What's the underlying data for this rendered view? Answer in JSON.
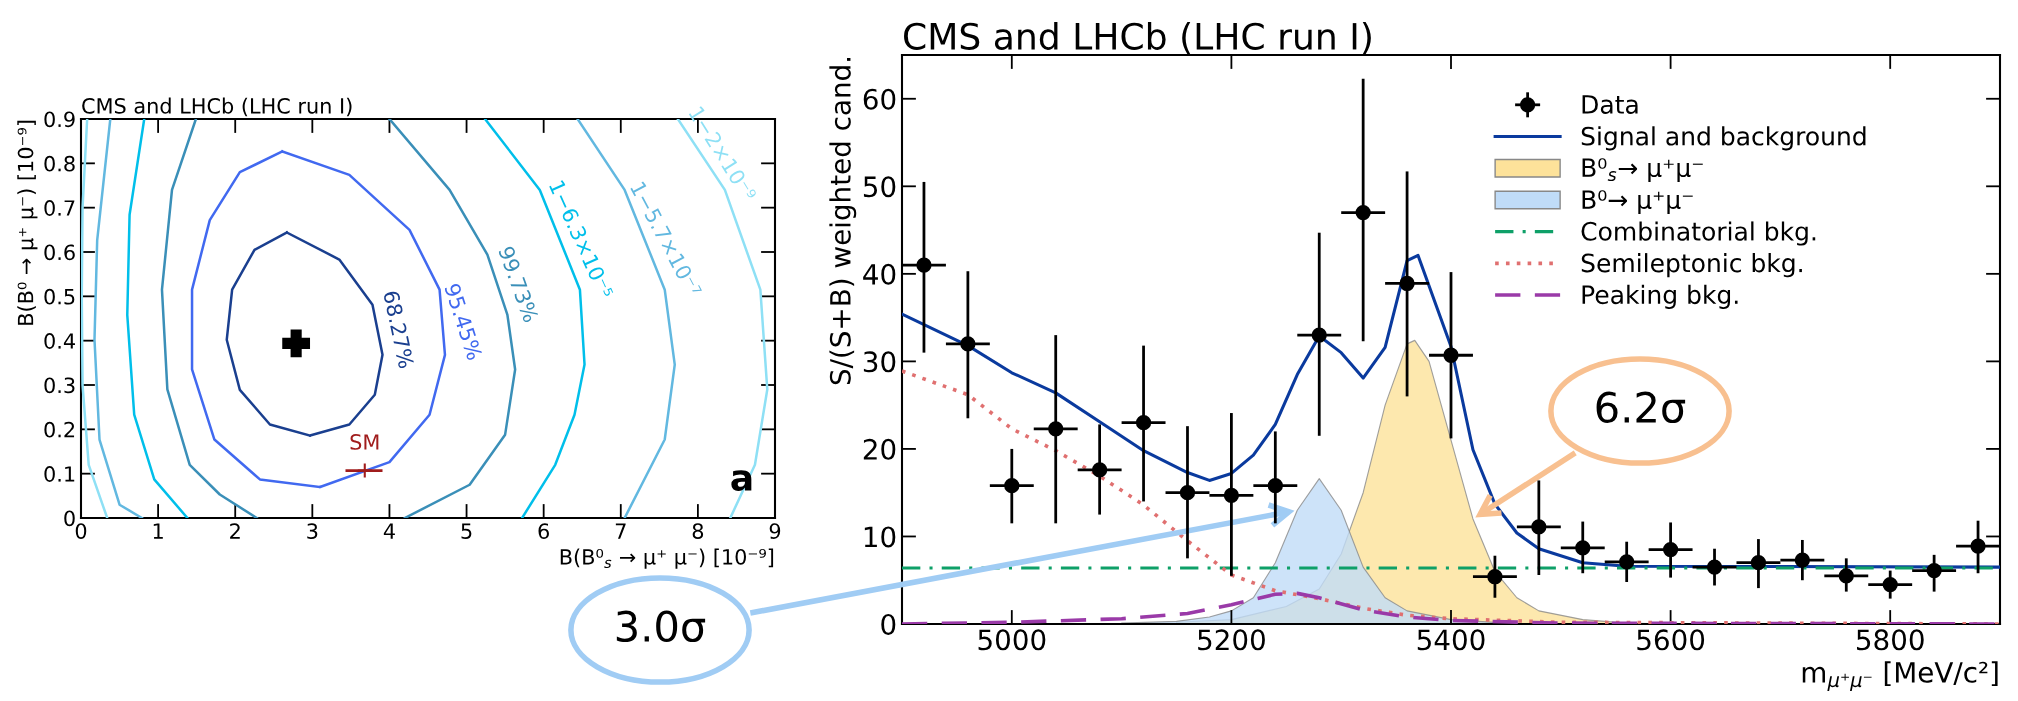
{
  "chart_data": [
    {
      "type": "line",
      "title": "CMS and LHCb (LHC run I)",
      "xlabel": "B(B⁰$_{s}$ → μ⁺ μ⁻) [10⁻⁹]",
      "ylabel": "B(B⁰ → μ⁺ μ⁻) [10⁻⁹]",
      "xlim": [
        0,
        9
      ],
      "ylim": [
        0,
        0.9
      ],
      "xticks": [
        0,
        1,
        2,
        3,
        4,
        5,
        6,
        7,
        8,
        9
      ],
      "yticks": [
        0,
        0.1,
        0.2,
        0.3,
        0.4,
        0.5,
        0.6,
        0.7,
        0.8,
        0.9
      ],
      "grid": false,
      "legend": false,
      "series": [
        {
          "name": "68.27%",
          "color": "#1a3f8f",
          "x": [
            2.67,
            3.35,
            3.78,
            3.91,
            3.81,
            3.48,
            2.97,
            null,
            2.97,
            2.45,
            2.06,
            1.89,
            1.96,
            2.25,
            2.67
          ],
          "values": [
            0.644,
            0.583,
            0.481,
            0.368,
            0.278,
            0.211,
            0.186,
            null,
            0.186,
            0.211,
            0.289,
            0.402,
            0.515,
            0.605,
            0.644
          ]
        },
        {
          "name": "95.45%",
          "color": "#4169f0",
          "x": [
            2.61,
            3.48,
            4.26,
            4.65,
            4.72,
            4.52,
            4.0,
            3.1,
            null,
            3.1,
            2.32,
            1.73,
            1.44,
            1.44,
            1.67,
            2.06,
            2.61
          ],
          "values": [
            0.827,
            0.774,
            0.65,
            0.515,
            0.368,
            0.233,
            0.126,
            0.07,
            null,
            0.07,
            0.087,
            0.177,
            0.335,
            0.515,
            0.672,
            0.78,
            0.827
          ]
        },
        {
          "name": "99.73%",
          "color": "#3a8fb8",
          "x": [
            1.49,
            1.18,
            1.05,
            1.12,
            1.41,
            1.8,
            2.28,
            null,
            4.0,
            4.78,
            5.27,
            5.53,
            5.63,
            5.5,
            5.04,
            4.2
          ],
          "values": [
            0.9,
            0.74,
            0.515,
            0.29,
            0.12,
            0.053,
            0,
            null,
            0.9,
            0.74,
            0.594,
            0.458,
            0.335,
            0.188,
            0.075,
            0
          ]
        },
        {
          "name": "1−6.3×10⁻⁵",
          "color": "#00bfea",
          "x": [
            0.82,
            0.63,
            0.6,
            0.69,
            0.95,
            1.38,
            null,
            5.24,
            5.95,
            6.47,
            6.53,
            6.4,
            6.15,
            5.72
          ],
          "values": [
            0.9,
            0.684,
            0.458,
            0.233,
            0.087,
            0,
            null,
            0.9,
            0.74,
            0.515,
            0.346,
            0.233,
            0.12,
            0
          ]
        },
        {
          "name": "1−5.7×10⁻⁷",
          "color": "#62b8e0",
          "x": [
            0.38,
            0.21,
            0.175,
            0.24,
            0.5,
            0.79,
            null,
            6.44,
            7.05,
            7.57,
            7.7,
            7.57,
            7.05
          ],
          "values": [
            0.9,
            0.627,
            0.402,
            0.177,
            0.03,
            0,
            null,
            0.9,
            0.74,
            0.515,
            0.346,
            0.177,
            0
          ]
        },
        {
          "name": "1−2×10⁻⁹",
          "color": "#8ee0f5",
          "x": [
            0.08,
            0.02,
            0.01,
            0.02,
            0.1,
            0.34,
            null,
            7.74,
            8.35,
            8.81,
            8.9,
            8.74,
            8.42
          ],
          "values": [
            0.9,
            0.7,
            0.5,
            0.3,
            0.12,
            0,
            null,
            0.9,
            0.74,
            0.515,
            0.29,
            0.12,
            0
          ]
        },
        {
          "type": "scatter",
          "marker": "cross",
          "color": "#000000",
          "x": [
            2.79
          ],
          "values": [
            0.394
          ]
        },
        {
          "type": "scatter",
          "name": "SM",
          "marker": "cross",
          "color": "#a01c1c",
          "x": [
            3.68
          ],
          "values": [
            0.107
          ],
          "xerrors": [
            [
              3.43,
              3.91
            ]
          ]
        }
      ],
      "annotations": [
        "a"
      ]
    },
    {
      "type": "line",
      "title": "CMS and LHCb (LHC run I)",
      "xlabel": "m$_{μ⁺μ⁻}$ [MeV/c²]",
      "ylabel": "S/(S+B) weighted cand.",
      "xlim": [
        4900,
        5900
      ],
      "ylim": [
        0,
        65
      ],
      "xticks": [
        5000,
        5200,
        5400,
        5600,
        5800
      ],
      "yticks": [
        0,
        10,
        20,
        30,
        40,
        50,
        60
      ],
      "grid": false,
      "legend": "top right",
      "series": [
        {
          "name": "Data",
          "type": "scatter",
          "marker": "circle",
          "color": "#000000",
          "x": [
            4920,
            4960,
            5000,
            5040,
            5080,
            5120,
            5160,
            5200,
            5240,
            5280,
            5320,
            5360,
            5400,
            5440,
            5480,
            5520,
            5560,
            5600,
            5640,
            5680,
            5720,
            5760,
            5800,
            5840,
            5880
          ],
          "values": [
            41,
            32,
            15.8,
            22.3,
            17.6,
            23,
            15,
            14.7,
            15.8,
            33,
            47,
            38.9,
            30.7,
            5.4,
            11.1,
            8.7,
            7.1,
            8.5,
            6.5,
            7.0,
            7.3,
            5.5,
            4.5,
            6.1,
            8.9
          ],
          "errors": [
            [
              31,
              50.5
            ],
            [
              23.5,
              40.3
            ],
            [
              11.5,
              20
            ],
            [
              11.5,
              33
            ],
            [
              12.5,
              22.8
            ],
            [
              14,
              31.8
            ],
            [
              7.5,
              22.6
            ],
            [
              5.5,
              24.1
            ],
            [
              11.5,
              22
            ],
            [
              21.5,
              44.7
            ],
            [
              32.3,
              62.3
            ],
            [
              26,
              51.7
            ],
            [
              21.2,
              40.2
            ],
            [
              3.0,
              7.8
            ],
            [
              5.6,
              16.4
            ],
            [
              5.8,
              11.7
            ],
            [
              4.8,
              9.4
            ],
            [
              5.3,
              11.6
            ],
            [
              4.4,
              8.6
            ],
            [
              4.1,
              9.7
            ],
            [
              5.0,
              9.6
            ],
            [
              3.7,
              7.5
            ],
            [
              2.9,
              6.1
            ],
            [
              3.7,
              7.9
            ],
            [
              5.8,
              11.8
            ]
          ],
          "xerrors": [
            20,
            20,
            20,
            20,
            20,
            20,
            20,
            20,
            20,
            20,
            20,
            20,
            20,
            20,
            20,
            20,
            20,
            20,
            20,
            20,
            20,
            20,
            20,
            20,
            20
          ]
        },
        {
          "name": "Signal and background",
          "type": "line",
          "line_style": "solid",
          "color": "#0a3a9e",
          "x": [
            4900,
            4960,
            5000,
            5040,
            5080,
            5120,
            5160,
            5180,
            5200,
            5220,
            5240,
            5260,
            5280,
            5300,
            5320,
            5340,
            5360,
            5370,
            5400,
            5420,
            5440,
            5460,
            5480,
            5520,
            5560,
            5900
          ],
          "values": [
            35.4,
            31.8,
            28.7,
            26.4,
            23.1,
            19.8,
            17.3,
            16.4,
            17.2,
            19.3,
            22.8,
            28.5,
            32.9,
            31,
            28.1,
            31.6,
            41.5,
            42.1,
            31.7,
            19.9,
            13.7,
            10.4,
            8.6,
            7.0,
            6.6,
            6.5
          ]
        },
        {
          "name": "B⁰$_{s}$→ μ⁺μ⁻",
          "type": "area",
          "color": "#fde29a",
          "x": [
            5150,
            5200,
            5250,
            5280,
            5300,
            5320,
            5340,
            5360,
            5367,
            5380,
            5400,
            5420,
            5440,
            5460,
            5480,
            5520,
            5560,
            5600
          ],
          "values": [
            0.2,
            0.5,
            2,
            4,
            8,
            15,
            25,
            32,
            32.4,
            30,
            21,
            12,
            6,
            3,
            1.5,
            0.5,
            0.1,
            0
          ]
        },
        {
          "name": "B⁰→ μ⁺μ⁻",
          "type": "area",
          "color": "#c0dcf8",
          "x": [
            5100,
            5150,
            5180,
            5200,
            5220,
            5240,
            5260,
            5280,
            5300,
            5320,
            5340,
            5360,
            5400,
            5450
          ],
          "values": [
            0.1,
            0.3,
            0.8,
            1.5,
            3,
            7,
            13,
            16.6,
            13,
            6.5,
            3,
            1.5,
            0.5,
            0.1
          ]
        },
        {
          "name": "Combinatorial bkg.",
          "type": "line",
          "line_style": "dashdot",
          "color": "#0ea068",
          "x": [
            4900,
            5900
          ],
          "values": [
            6.4,
            6.4
          ]
        },
        {
          "name": "Semileptonic bkg.",
          "type": "line",
          "line_style": "dotted",
          "color": "#e07070",
          "x": [
            4900,
            4960,
            5000,
            5040,
            5080,
            5120,
            5160,
            5200,
            5240,
            5280,
            5320,
            5360,
            5400,
            5500,
            5900
          ],
          "values": [
            28.9,
            26.2,
            22.3,
            19.8,
            16.9,
            13.6,
            9.5,
            5.6,
            3.8,
            2.9,
            1.8,
            1.0,
            0.6,
            0.2,
            0
          ]
        },
        {
          "name": "Peaking bkg.",
          "type": "line",
          "line_style": "dashed",
          "color": "#9a3aa8",
          "x": [
            4900,
            5000,
            5100,
            5160,
            5200,
            5240,
            5260,
            5280,
            5320,
            5360,
            5400,
            5500,
            5900
          ],
          "values": [
            0,
            0.2,
            0.6,
            1.2,
            2.2,
            3.4,
            3.5,
            3.0,
            1.6,
            0.8,
            0.4,
            0.1,
            0
          ]
        }
      ],
      "annotations": [
        {
          "text": "6.2σ",
          "x": 5420,
          "y": 12
        },
        {
          "text": "3.0σ",
          "x": 5260,
          "y": 13
        }
      ]
    }
  ]
}
